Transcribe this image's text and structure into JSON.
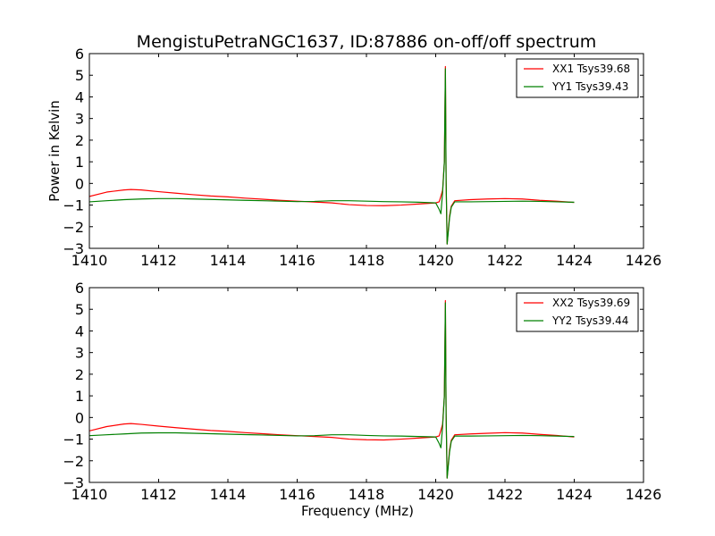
{
  "figure": {
    "title": "MengistuPetraNGC1637, ID:87886 on-off/off spectrum",
    "background": "#ffffff"
  },
  "chart_data": [
    {
      "type": "line",
      "xlabel": "",
      "ylabel": "Power in Kelvin",
      "xlim": [
        1410,
        1426
      ],
      "ylim": [
        -3,
        6
      ],
      "xticks": [
        1410,
        1412,
        1414,
        1416,
        1418,
        1420,
        1422,
        1424,
        1426
      ],
      "yticks": [
        -3,
        -2,
        -1,
        0,
        1,
        2,
        3,
        4,
        5,
        6
      ],
      "grid": false,
      "legend_position": "top-right",
      "series": [
        {
          "name": "XX1 Tsys39.68",
          "color": "#ff0000",
          "x": [
            1410.0,
            1410.5,
            1411.0,
            1411.2,
            1411.5,
            1412.0,
            1412.5,
            1413.0,
            1413.5,
            1414.0,
            1414.5,
            1415.0,
            1415.5,
            1416.0,
            1416.5,
            1417.0,
            1417.5,
            1418.0,
            1418.5,
            1419.0,
            1419.5,
            1420.0,
            1420.1,
            1420.15,
            1420.2,
            1420.25,
            1420.28,
            1420.3,
            1420.33,
            1420.36,
            1420.4,
            1420.45,
            1420.55,
            1421.0,
            1421.5,
            1422.0,
            1422.5,
            1423.0,
            1423.5,
            1424.0
          ],
          "y": [
            -0.6,
            -0.4,
            -0.3,
            -0.28,
            -0.3,
            -0.38,
            -0.45,
            -0.52,
            -0.58,
            -0.62,
            -0.68,
            -0.73,
            -0.78,
            -0.82,
            -0.86,
            -0.9,
            -0.98,
            -1.02,
            -1.03,
            -1.0,
            -0.95,
            -0.9,
            -0.85,
            -0.6,
            -0.3,
            1.0,
            5.4,
            0.2,
            -2.8,
            -2.2,
            -1.5,
            -1.05,
            -0.8,
            -0.75,
            -0.72,
            -0.7,
            -0.72,
            -0.78,
            -0.82,
            -0.88
          ]
        },
        {
          "name": "YY1 Tsys39.43",
          "color": "#008000",
          "x": [
            1410.0,
            1410.5,
            1411.0,
            1411.5,
            1412.0,
            1412.5,
            1413.0,
            1413.5,
            1414.0,
            1414.5,
            1415.0,
            1415.5,
            1416.0,
            1416.5,
            1417.0,
            1417.5,
            1418.0,
            1418.5,
            1419.0,
            1419.5,
            1420.0,
            1420.1,
            1420.15,
            1420.2,
            1420.25,
            1420.28,
            1420.3,
            1420.33,
            1420.36,
            1420.4,
            1420.45,
            1420.55,
            1421.0,
            1421.5,
            1422.0,
            1422.5,
            1423.0,
            1423.5,
            1424.0
          ],
          "y": [
            -0.85,
            -0.8,
            -0.75,
            -0.72,
            -0.7,
            -0.7,
            -0.72,
            -0.74,
            -0.76,
            -0.78,
            -0.8,
            -0.82,
            -0.84,
            -0.83,
            -0.8,
            -0.8,
            -0.82,
            -0.84,
            -0.85,
            -0.87,
            -0.9,
            -1.2,
            -1.4,
            -0.4,
            1.0,
            5.3,
            0.2,
            -2.8,
            -2.3,
            -1.6,
            -1.1,
            -0.85,
            -0.85,
            -0.84,
            -0.83,
            -0.82,
            -0.83,
            -0.85,
            -0.87
          ]
        }
      ]
    },
    {
      "type": "line",
      "xlabel": "Frequency (MHz)",
      "ylabel": "",
      "xlim": [
        1410,
        1426
      ],
      "ylim": [
        -3,
        6
      ],
      "xticks": [
        1410,
        1412,
        1414,
        1416,
        1418,
        1420,
        1422,
        1424,
        1426
      ],
      "yticks": [
        -3,
        -2,
        -1,
        0,
        1,
        2,
        3,
        4,
        5,
        6
      ],
      "grid": false,
      "legend_position": "top-right",
      "series": [
        {
          "name": "XX2 Tsys39.69",
          "color": "#ff0000",
          "x": [
            1410.0,
            1410.5,
            1411.0,
            1411.2,
            1411.5,
            1412.0,
            1412.5,
            1413.0,
            1413.5,
            1414.0,
            1414.5,
            1415.0,
            1415.5,
            1416.0,
            1416.5,
            1417.0,
            1417.5,
            1418.0,
            1418.5,
            1419.0,
            1419.5,
            1420.0,
            1420.1,
            1420.15,
            1420.2,
            1420.25,
            1420.28,
            1420.3,
            1420.33,
            1420.36,
            1420.4,
            1420.45,
            1420.55,
            1421.0,
            1421.5,
            1422.0,
            1422.5,
            1423.0,
            1423.5,
            1424.0
          ],
          "y": [
            -0.62,
            -0.42,
            -0.3,
            -0.28,
            -0.32,
            -0.4,
            -0.47,
            -0.54,
            -0.6,
            -0.64,
            -0.7,
            -0.75,
            -0.8,
            -0.84,
            -0.88,
            -0.92,
            -1.0,
            -1.03,
            -1.04,
            -1.0,
            -0.95,
            -0.9,
            -0.85,
            -0.6,
            -0.3,
            1.0,
            5.4,
            0.2,
            -2.8,
            -2.2,
            -1.5,
            -1.05,
            -0.8,
            -0.76,
            -0.73,
            -0.7,
            -0.72,
            -0.78,
            -0.83,
            -0.9
          ]
        },
        {
          "name": "YY2 Tsys39.44",
          "color": "#008000",
          "x": [
            1410.0,
            1410.5,
            1411.0,
            1411.5,
            1412.0,
            1412.5,
            1413.0,
            1413.5,
            1414.0,
            1414.5,
            1415.0,
            1415.5,
            1416.0,
            1416.5,
            1417.0,
            1417.5,
            1418.0,
            1418.5,
            1419.0,
            1419.5,
            1420.0,
            1420.1,
            1420.15,
            1420.2,
            1420.25,
            1420.28,
            1420.3,
            1420.33,
            1420.36,
            1420.4,
            1420.45,
            1420.55,
            1421.0,
            1421.5,
            1422.0,
            1422.5,
            1423.0,
            1423.5,
            1424.0
          ],
          "y": [
            -0.84,
            -0.8,
            -0.76,
            -0.72,
            -0.71,
            -0.71,
            -0.73,
            -0.75,
            -0.77,
            -0.79,
            -0.81,
            -0.83,
            -0.85,
            -0.84,
            -0.8,
            -0.8,
            -0.83,
            -0.85,
            -0.86,
            -0.88,
            -0.9,
            -1.2,
            -1.4,
            -0.4,
            1.0,
            5.3,
            0.2,
            -2.8,
            -2.3,
            -1.6,
            -1.1,
            -0.86,
            -0.86,
            -0.85,
            -0.84,
            -0.83,
            -0.84,
            -0.86,
            -0.88
          ]
        }
      ]
    }
  ]
}
